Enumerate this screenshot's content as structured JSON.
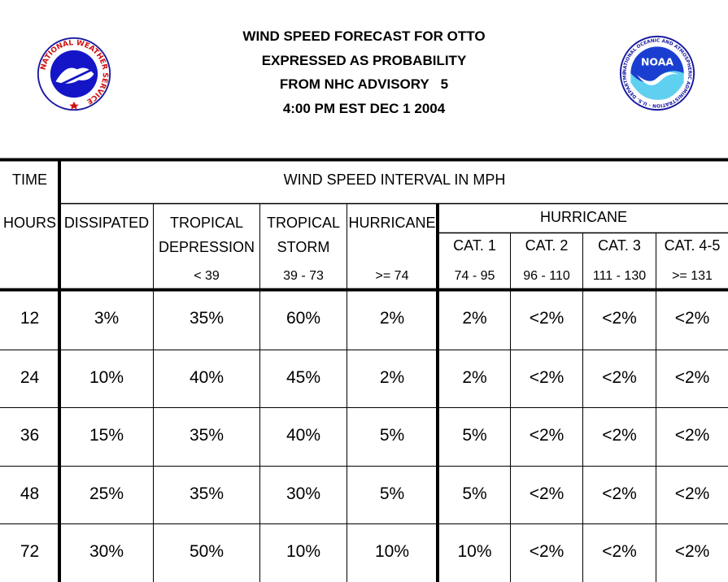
{
  "header": {
    "title_lines": [
      "WIND SPEED FORECAST FOR OTTO",
      "EXPRESSED AS PROBABILITY",
      "FROM NHC ADVISORY   5",
      "4:00 PM EST DEC 1 2004"
    ],
    "logos": {
      "left": {
        "icon": "nws-logo",
        "text": "NATIONAL WEATHER SERVICE"
      },
      "right": {
        "icon": "noaa-logo",
        "text": "NOAA",
        "ring_text": "NATIONAL OCEANIC AND ATMOSPHERIC ADMINISTRATION · U.S. DEPARTMENT OF COMMERCE"
      }
    }
  },
  "table": {
    "time_label": "TIME",
    "interval_label": "WIND SPEED INTERVAL IN MPH",
    "hours_label": "HOURS",
    "hurricane_group_label": "HURRICANE",
    "columns": [
      {
        "line1": "DISSIPATED",
        "line2": "",
        "range": ""
      },
      {
        "line1": "TROPICAL",
        "line2": "DEPRESSION",
        "range": "< 39"
      },
      {
        "line1": "TROPICAL",
        "line2": "STORM",
        "range": "39 - 73"
      },
      {
        "line1": "HURRICANE",
        "line2": "",
        "range": ">= 74"
      },
      {
        "line1": "CAT. 1",
        "line2": "",
        "range": "74 - 95"
      },
      {
        "line1": "CAT. 2",
        "line2": "",
        "range": "96 - 110"
      },
      {
        "line1": "CAT. 3",
        "line2": "",
        "range": "111 - 130"
      },
      {
        "line1": "CAT. 4-5",
        "line2": "",
        "range": ">= 131"
      }
    ],
    "rows": [
      {
        "hour": "12",
        "values": [
          "3%",
          "35%",
          "60%",
          "2%",
          "2%",
          "<2%",
          "<2%",
          "<2%"
        ]
      },
      {
        "hour": "24",
        "values": [
          "10%",
          "40%",
          "45%",
          "2%",
          "2%",
          "<2%",
          "<2%",
          "<2%"
        ]
      },
      {
        "hour": "36",
        "values": [
          "15%",
          "35%",
          "40%",
          "5%",
          "5%",
          "<2%",
          "<2%",
          "<2%"
        ]
      },
      {
        "hour": "48",
        "values": [
          "25%",
          "35%",
          "30%",
          "5%",
          "5%",
          "<2%",
          "<2%",
          "<2%"
        ]
      },
      {
        "hour": "72",
        "values": [
          "30%",
          "50%",
          "10%",
          "10%",
          "10%",
          "<2%",
          "<2%",
          "<2%"
        ]
      }
    ]
  }
}
